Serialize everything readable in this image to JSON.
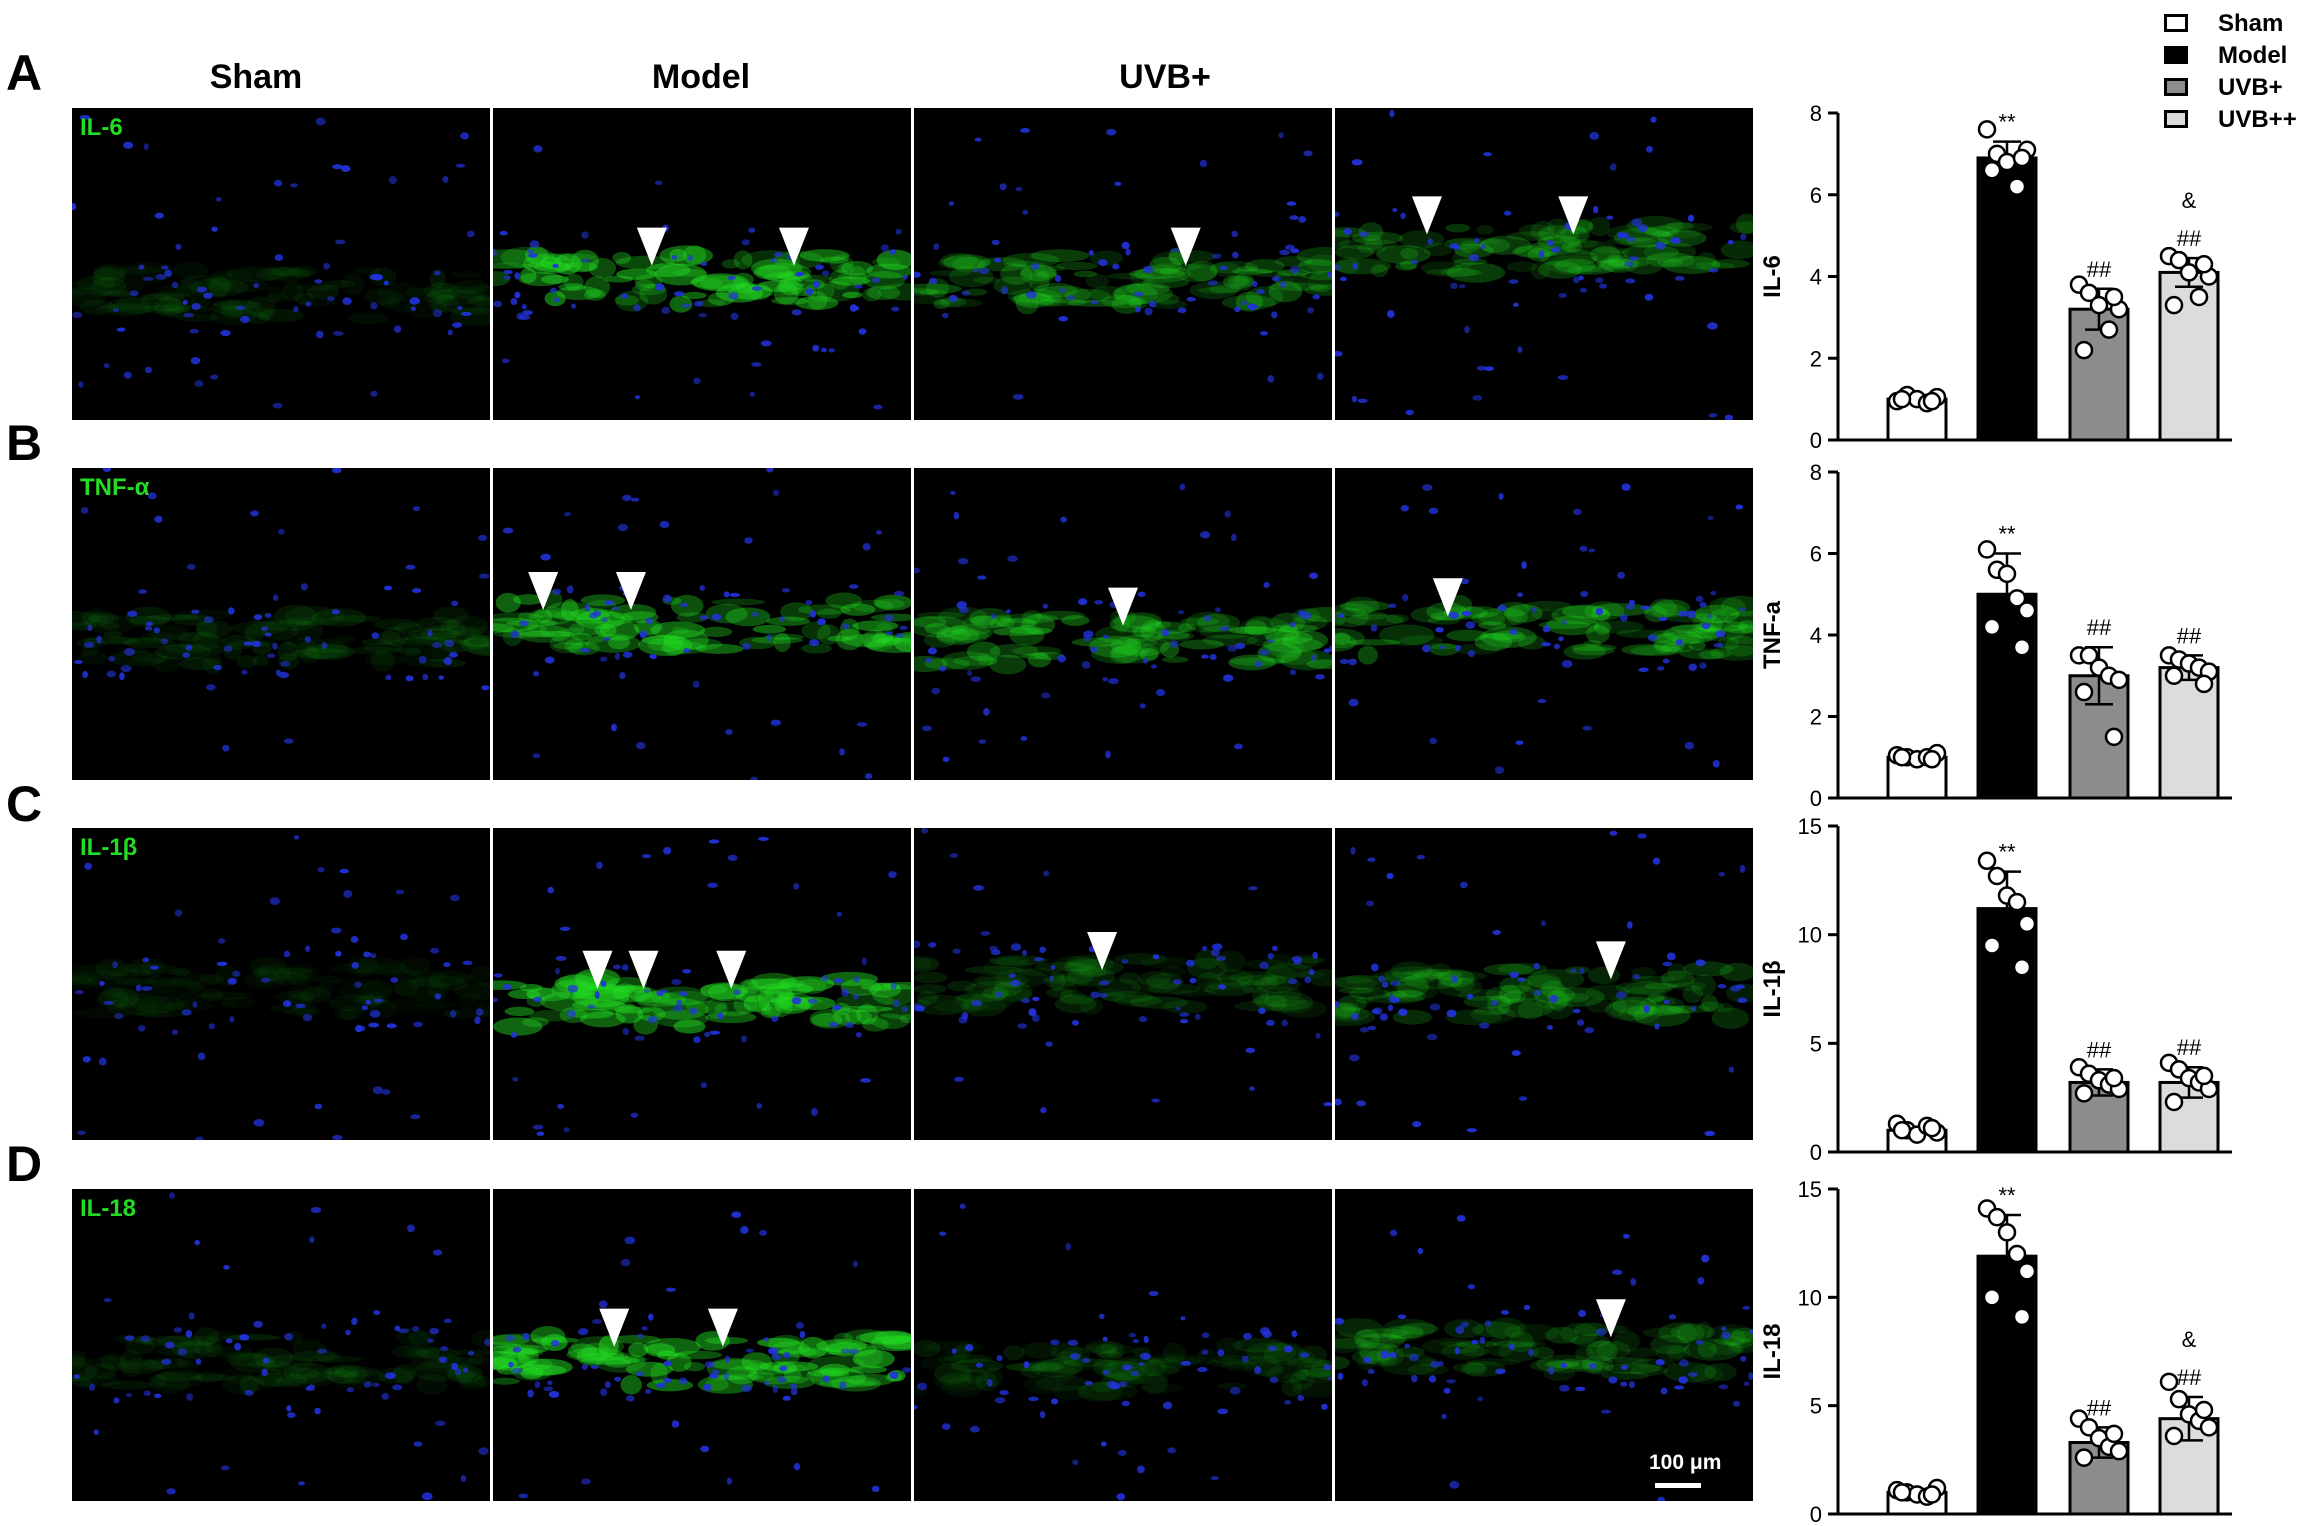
{
  "panel_letters": [
    "A",
    "B",
    "C",
    "D"
  ],
  "column_headers": [
    "Sham",
    "Model",
    "UVB+"
  ],
  "stains": [
    "IL-6",
    "TNF-α",
    "IL-1β",
    "IL-18"
  ],
  "scale_bar_label": "100 μm",
  "colors": {
    "sham": "#ffffff",
    "model": "#000000",
    "uvb_plus": "#8c8c8c",
    "uvb_plusplus": "#dcdcdc",
    "stain_green": "#22dd22",
    "nuclei_blue": "#2233dd"
  },
  "legend": [
    {
      "label": "Sham",
      "color": "#ffffff"
    },
    {
      "label": "Model",
      "color": "#000000"
    },
    {
      "label": "UVB+",
      "color": "#8c8c8c"
    },
    {
      "label": "UVB++",
      "color": "#dcdcdc"
    }
  ],
  "chart_data": [
    {
      "type": "bar",
      "ylabel": "IL-6",
      "ylim": [
        0,
        8
      ],
      "yticks": [
        0,
        2,
        4,
        6,
        8
      ],
      "categories": [
        "Sham",
        "Model",
        "UVB+",
        "UVB++"
      ],
      "values": [
        1.0,
        6.9,
        3.2,
        4.1
      ],
      "errors": [
        0.1,
        0.4,
        0.5,
        0.35
      ],
      "points": [
        [
          0.95,
          1.1,
          1.0,
          0.9,
          1.05,
          1.0,
          0.95
        ],
        [
          7.6,
          7.0,
          6.8,
          6.2,
          7.1,
          6.6,
          6.9
        ],
        [
          3.8,
          3.6,
          3.3,
          2.7,
          3.2,
          2.2,
          3.5
        ],
        [
          4.5,
          4.4,
          4.1,
          3.5,
          4.0,
          3.3,
          4.3
        ]
      ],
      "annotations": [
        "",
        "**",
        "##",
        "&\n##"
      ]
    },
    {
      "type": "bar",
      "ylabel": "TNF-a",
      "ylim": [
        0,
        8
      ],
      "yticks": [
        0,
        2,
        4,
        6,
        8
      ],
      "categories": [
        "Sham",
        "Model",
        "UVB+",
        "UVB++"
      ],
      "values": [
        1.0,
        5.0,
        3.0,
        3.2
      ],
      "errors": [
        0.05,
        1.0,
        0.7,
        0.3
      ],
      "points": [
        [
          1.05,
          1.0,
          0.95,
          1.0,
          1.1,
          1.0,
          0.95
        ],
        [
          6.1,
          5.6,
          5.5,
          4.9,
          4.6,
          4.2,
          3.7
        ],
        [
          3.5,
          3.5,
          3.2,
          3.0,
          2.9,
          2.6,
          1.5
        ],
        [
          3.5,
          3.4,
          3.3,
          3.2,
          3.1,
          3.0,
          2.8
        ]
      ],
      "annotations": [
        "",
        "**",
        "##",
        "##"
      ]
    },
    {
      "type": "bar",
      "ylabel": "IL-1β",
      "ylim": [
        0,
        15
      ],
      "yticks": [
        0,
        5,
        10,
        15
      ],
      "categories": [
        "Sham",
        "Model",
        "UVB+",
        "UVB++"
      ],
      "values": [
        1.0,
        11.2,
        3.2,
        3.2
      ],
      "errors": [
        0.15,
        1.7,
        0.6,
        0.7
      ],
      "points": [
        [
          1.3,
          1.0,
          0.8,
          1.2,
          0.9,
          1.0,
          1.1
        ],
        [
          13.4,
          12.7,
          11.8,
          11.5,
          10.5,
          9.5,
          8.5
        ],
        [
          3.9,
          3.6,
          3.3,
          3.1,
          2.9,
          2.7,
          3.4
        ],
        [
          4.1,
          3.8,
          3.4,
          3.2,
          2.9,
          2.3,
          3.5
        ]
      ],
      "annotations": [
        "",
        "**",
        "##",
        "##"
      ]
    },
    {
      "type": "bar",
      "ylabel": "IL-18",
      "ylim": [
        0,
        15
      ],
      "yticks": [
        0,
        5,
        10,
        15
      ],
      "categories": [
        "Sham",
        "Model",
        "UVB+",
        "UVB++"
      ],
      "values": [
        1.0,
        11.9,
        3.3,
        4.4
      ],
      "errors": [
        0.15,
        1.9,
        0.7,
        1.0
      ],
      "points": [
        [
          1.1,
          1.0,
          0.9,
          0.8,
          1.2,
          1.0,
          0.9
        ],
        [
          14.1,
          13.7,
          13.0,
          12.0,
          11.2,
          10.0,
          9.1
        ],
        [
          4.4,
          4.0,
          3.5,
          3.1,
          2.9,
          2.6,
          3.7
        ],
        [
          6.1,
          5.3,
          4.6,
          4.3,
          4.0,
          3.6,
          4.8
        ]
      ],
      "annotations": [
        "",
        "**",
        "##",
        "&\n##"
      ]
    }
  ]
}
